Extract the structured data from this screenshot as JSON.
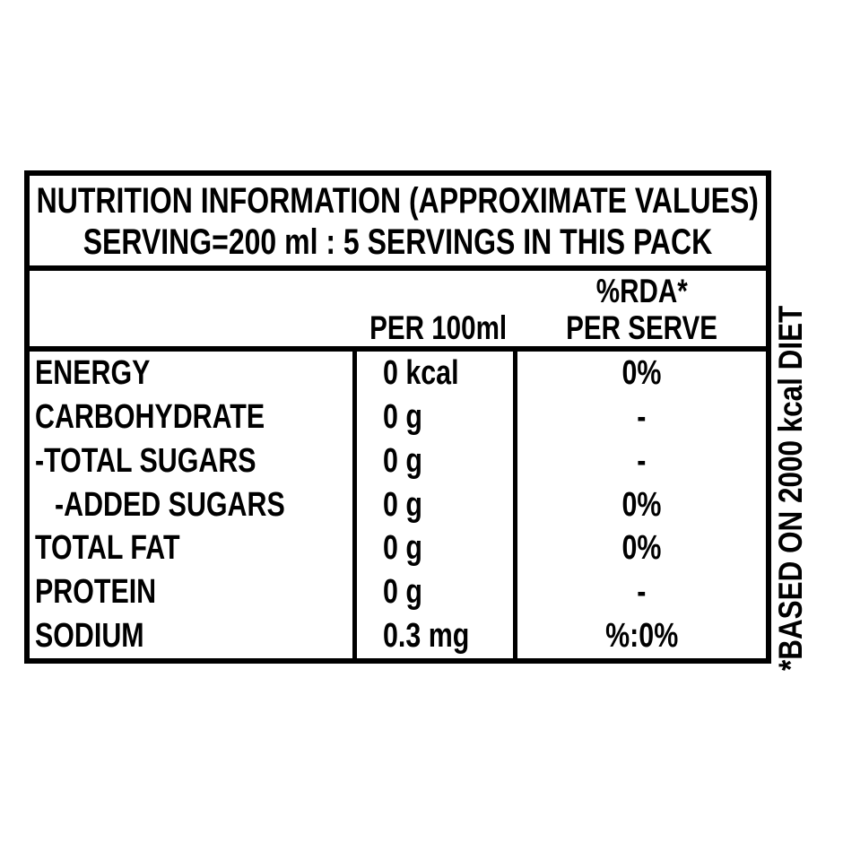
{
  "header": {
    "title": "NUTRITION INFORMATION (APPROXIMATE VALUES)",
    "serving": "SERVING=200 ml : 5 SERVINGS IN THIS PACK"
  },
  "columns": {
    "per_100ml": "PER 100ml",
    "rda_line1": "%RDA*",
    "rda_line2": "PER SERVE"
  },
  "rows": [
    {
      "name": "ENERGY",
      "per_100ml": "0 kcal",
      "rda_per_serve": "0%"
    },
    {
      "name": "CARBOHYDRATE",
      "per_100ml": "0 g",
      "rda_per_serve": "-"
    },
    {
      "name": "-TOTAL SUGARS",
      "per_100ml": "0 g",
      "rda_per_serve": "-"
    },
    {
      "name": "-ADDED SUGARS",
      "per_100ml": "0 g",
      "rda_per_serve": "0%"
    },
    {
      "name": "TOTAL FAT",
      "per_100ml": "0 g",
      "rda_per_serve": "0%"
    },
    {
      "name": "PROTEIN",
      "per_100ml": "0 g",
      "rda_per_serve": "-"
    },
    {
      "name": "SODIUM",
      "per_100ml": "0.3 mg",
      "rda_per_serve": "%:0%"
    }
  ],
  "footnote": "*BASED ON 2000 kcal DIET",
  "colors": {
    "ink": "#000000",
    "paper": "#ffffff"
  }
}
